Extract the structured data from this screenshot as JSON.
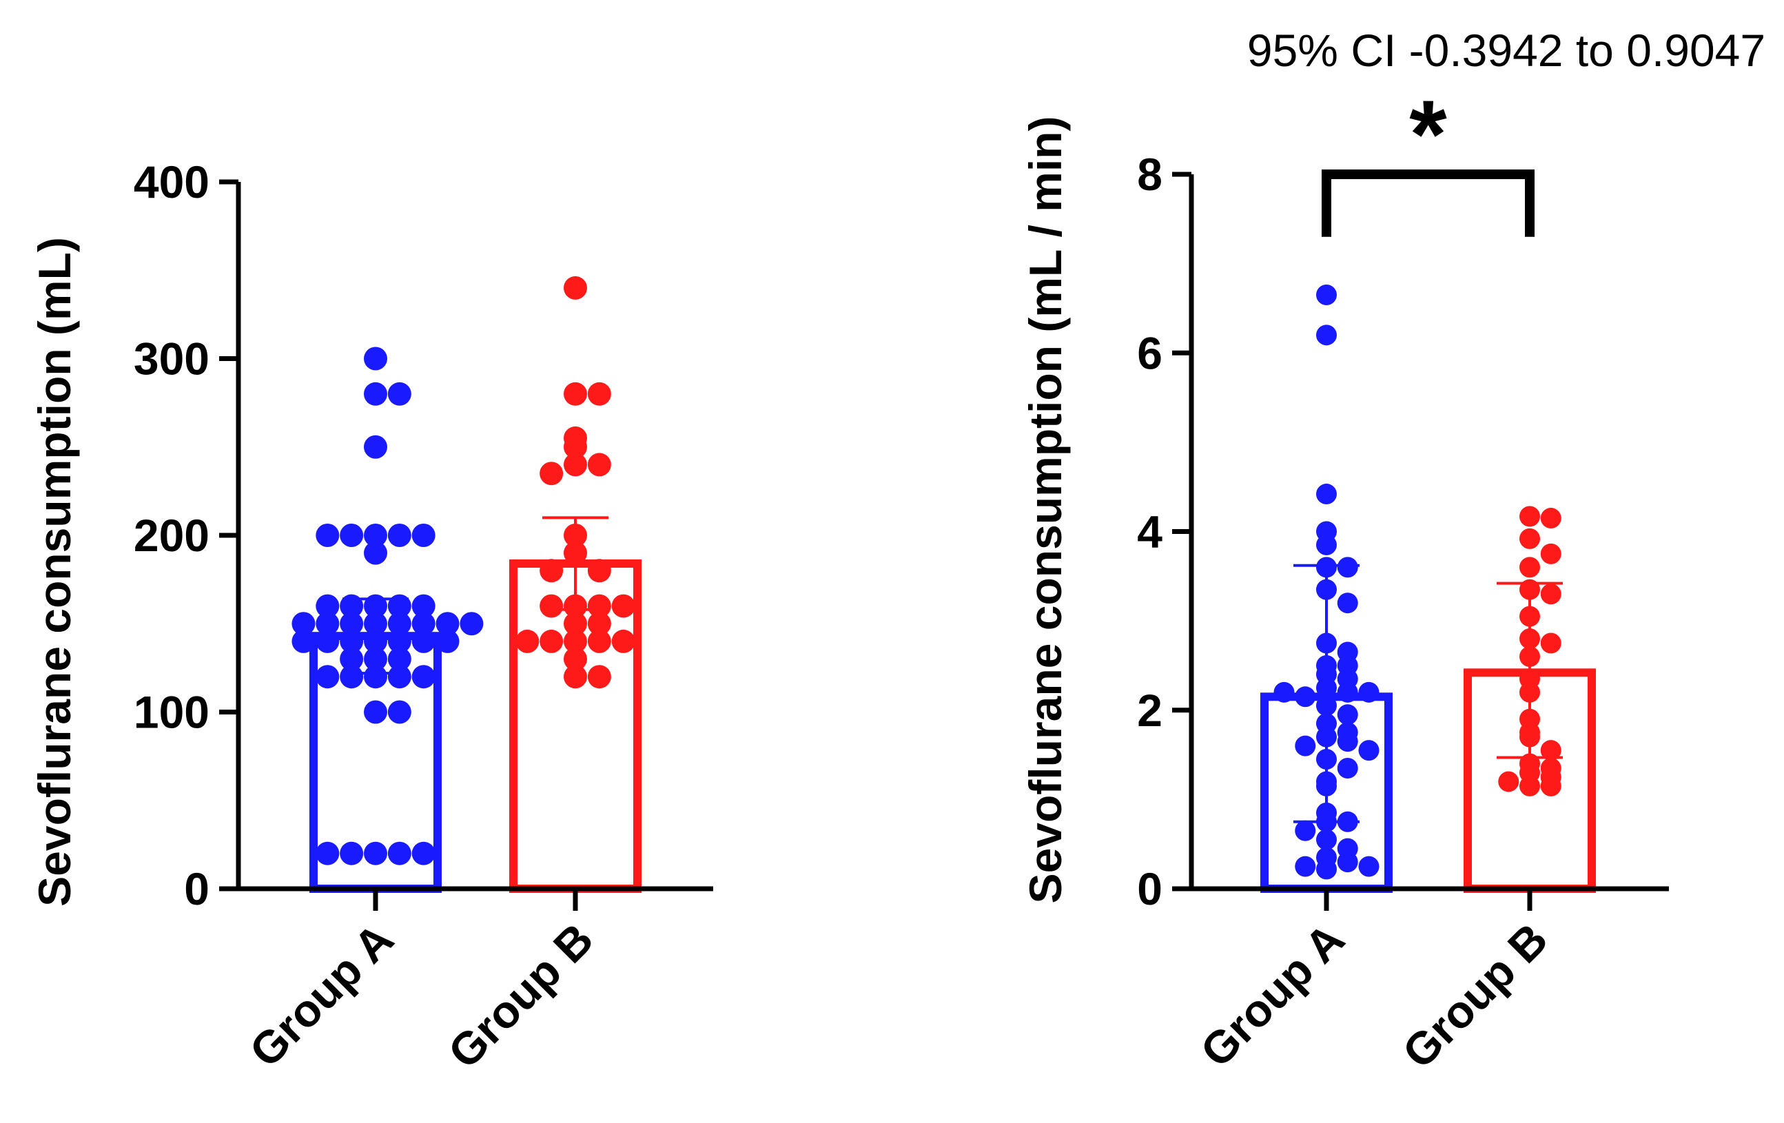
{
  "figure_panels": 2,
  "chart_data": [
    {
      "type": "bar",
      "panel": "left",
      "title": "",
      "ylabel": "Sevoflurane consumption (mL)",
      "xlabel": "",
      "ylim": [
        0,
        400
      ],
      "yticks": [
        "0",
        "100",
        "200",
        "300",
        "400"
      ],
      "categories": [
        "Group A",
        "Group B"
      ],
      "series": [
        {
          "name": "Group A",
          "color": "#1a1aff",
          "mean": 143,
          "sd_low": 122,
          "sd_high": 164,
          "points": [
            300,
            280,
            280,
            250,
            200,
            200,
            200,
            200,
            200,
            190,
            160,
            160,
            160,
            160,
            160,
            150,
            150,
            150,
            150,
            150,
            150,
            150,
            150,
            140,
            140,
            140,
            140,
            140,
            140,
            140,
            130,
            130,
            130,
            120,
            120,
            120,
            120,
            120,
            100,
            100,
            20,
            20,
            20,
            20,
            20
          ]
        },
        {
          "name": "Group B",
          "color": "#ff1a1a",
          "mean": 184,
          "sd_low": 158,
          "sd_high": 210,
          "points": [
            340,
            280,
            280,
            255,
            250,
            240,
            240,
            235,
            200,
            190,
            180,
            180,
            160,
            160,
            160,
            160,
            150,
            150,
            140,
            140,
            140,
            140,
            140,
            130,
            120,
            120
          ]
        }
      ]
    },
    {
      "type": "bar",
      "panel": "right",
      "title": "95% CI -0.3942 to 0.9047",
      "ylabel": "Sevoflurane consumption (mL / min)",
      "xlabel": "",
      "ylim": [
        0,
        8
      ],
      "yticks": [
        "0",
        "2",
        "4",
        "6",
        "8"
      ],
      "categories": [
        "Group A",
        "Group B"
      ],
      "significance": {
        "between": [
          "Group A",
          "Group B"
        ],
        "label": "*",
        "level": 8.0,
        "drop": 7.3
      },
      "series": [
        {
          "name": "Group A",
          "color": "#1a1aff",
          "mean": 2.15,
          "sd_low": 0.75,
          "sd_high": 3.62,
          "points": [
            6.65,
            6.2,
            4.42,
            4.0,
            3.85,
            3.6,
            3.6,
            3.35,
            3.2,
            2.75,
            2.65,
            2.5,
            2.5,
            2.4,
            2.35,
            2.25,
            2.2,
            2.15,
            2.2,
            2.2,
            2.05,
            1.95,
            1.85,
            1.75,
            1.7,
            1.65,
            1.6,
            1.55,
            1.45,
            1.35,
            1.2,
            1.15,
            0.85,
            0.75,
            0.75,
            0.65,
            0.55,
            0.45,
            0.35,
            0.3,
            0.25,
            0.25,
            0.22
          ]
        },
        {
          "name": "Group B",
          "color": "#ff1a1a",
          "mean": 2.42,
          "sd_low": 1.47,
          "sd_high": 3.42,
          "points": [
            4.17,
            4.15,
            3.92,
            3.75,
            3.6,
            3.35,
            3.3,
            3.05,
            2.8,
            2.75,
            2.6,
            2.35,
            2.2,
            1.9,
            1.75,
            1.7,
            1.55,
            1.4,
            1.35,
            1.3,
            1.25,
            1.2,
            1.15,
            1.15
          ]
        }
      ]
    }
  ]
}
